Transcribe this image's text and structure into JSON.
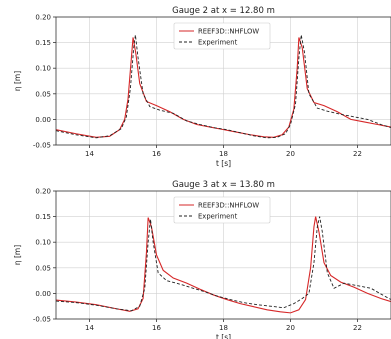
{
  "chart_data": [
    {
      "type": "line",
      "title": "Gauge 2 at x =  12.80 m",
      "xlabel": "t [s]",
      "ylabel": "η [m]",
      "xlim": [
        13,
        23
      ],
      "ylim": [
        -0.05,
        0.2
      ],
      "xticks": [
        "14",
        "16",
        "18",
        "20",
        "22"
      ],
      "yticks": [
        "-0.05",
        "0.00",
        "0.05",
        "0.10",
        "0.15",
        "0.20"
      ],
      "grid": true,
      "legend_position": "upper-center",
      "series": [
        {
          "name": "REEF3D::NHFLOW",
          "color": "#d62728",
          "style": "solid",
          "x": [
            13.0,
            13.6,
            14.2,
            14.6,
            14.9,
            15.05,
            15.15,
            15.25,
            15.3,
            15.38,
            15.5,
            15.7,
            16.0,
            16.4,
            16.8,
            17.2,
            17.6,
            18.0,
            18.4,
            18.8,
            19.2,
            19.5,
            19.75,
            19.95,
            20.1,
            20.2,
            20.25,
            20.35,
            20.5,
            20.7,
            21.0,
            21.4,
            21.8,
            22.2,
            22.6,
            23.0
          ],
          "y": [
            -0.02,
            -0.028,
            -0.035,
            -0.033,
            -0.02,
            0.0,
            0.04,
            0.12,
            0.16,
            0.13,
            0.07,
            0.035,
            0.027,
            0.015,
            0.0,
            -0.01,
            -0.015,
            -0.02,
            -0.025,
            -0.03,
            -0.034,
            -0.035,
            -0.03,
            -0.015,
            0.02,
            0.1,
            0.16,
            0.14,
            0.06,
            0.033,
            0.027,
            0.015,
            0.0,
            -0.005,
            -0.01,
            -0.015
          ]
        },
        {
          "name": "Experiment",
          "color": "#222222",
          "style": "dashed",
          "x": [
            13.0,
            13.6,
            14.2,
            14.6,
            14.95,
            15.1,
            15.22,
            15.32,
            15.37,
            15.45,
            15.6,
            15.8,
            16.1,
            16.5,
            16.9,
            17.3,
            17.7,
            18.1,
            18.5,
            18.9,
            19.3,
            19.6,
            19.85,
            20.0,
            20.15,
            20.25,
            20.32,
            20.42,
            20.55,
            20.8,
            21.1,
            21.5,
            21.9,
            22.3,
            22.7,
            23.0
          ],
          "y": [
            -0.022,
            -0.03,
            -0.036,
            -0.032,
            -0.018,
            0.005,
            0.06,
            0.14,
            0.165,
            0.12,
            0.05,
            0.025,
            0.018,
            0.012,
            -0.003,
            -0.01,
            -0.016,
            -0.02,
            -0.026,
            -0.032,
            -0.036,
            -0.035,
            -0.028,
            -0.01,
            0.03,
            0.12,
            0.165,
            0.13,
            0.05,
            0.022,
            0.016,
            0.01,
            0.005,
            0.0,
            -0.01,
            -0.016
          ]
        }
      ]
    },
    {
      "type": "line",
      "title": "Gauge 3 at x =  13.80 m",
      "xlabel": "t [s]",
      "ylabel": "η [m]",
      "xlim": [
        13,
        23
      ],
      "ylim": [
        -0.05,
        0.2
      ],
      "xticks": [
        "14",
        "16",
        "18",
        "20",
        "22"
      ],
      "yticks": [
        "-0.05",
        "0.00",
        "0.05",
        "0.10",
        "0.15",
        "0.20"
      ],
      "grid": true,
      "legend_position": "upper-center",
      "series": [
        {
          "name": "REEF3D::NHFLOW",
          "color": "#d62728",
          "style": "solid",
          "x": [
            13.0,
            13.6,
            14.2,
            14.8,
            15.2,
            15.45,
            15.6,
            15.7,
            15.75,
            15.85,
            16.0,
            16.2,
            16.5,
            16.9,
            17.3,
            17.7,
            18.1,
            18.5,
            18.9,
            19.3,
            19.7,
            20.0,
            20.25,
            20.45,
            20.6,
            20.7,
            20.75,
            20.85,
            21.0,
            21.2,
            21.5,
            21.9,
            22.3,
            22.7,
            23.0
          ],
          "y": [
            -0.013,
            -0.017,
            -0.022,
            -0.03,
            -0.035,
            -0.03,
            -0.01,
            0.08,
            0.148,
            0.13,
            0.075,
            0.045,
            0.03,
            0.02,
            0.008,
            -0.003,
            -0.012,
            -0.02,
            -0.026,
            -0.032,
            -0.036,
            -0.038,
            -0.032,
            -0.012,
            0.05,
            0.13,
            0.15,
            0.12,
            0.06,
            0.035,
            0.022,
            0.012,
            0.0,
            -0.01,
            -0.016
          ]
        },
        {
          "name": "Experiment",
          "color": "#222222",
          "style": "dashed",
          "x": [
            13.0,
            13.6,
            14.2,
            14.8,
            15.25,
            15.5,
            15.65,
            15.75,
            15.82,
            15.9,
            16.05,
            16.3,
            16.6,
            17.0,
            17.4,
            17.8,
            18.2,
            18.6,
            19.0,
            19.4,
            19.8,
            20.1,
            20.35,
            20.55,
            20.7,
            20.8,
            20.87,
            20.95,
            21.1,
            21.3,
            21.6,
            22.0,
            22.4,
            22.8,
            23.0
          ],
          "y": [
            -0.015,
            -0.018,
            -0.023,
            -0.03,
            -0.034,
            -0.025,
            0.01,
            0.1,
            0.145,
            0.1,
            0.04,
            0.025,
            0.02,
            0.012,
            0.004,
            -0.005,
            -0.012,
            -0.018,
            -0.022,
            -0.025,
            -0.028,
            -0.02,
            -0.01,
            0.0,
            0.06,
            0.13,
            0.15,
            0.12,
            0.04,
            0.01,
            0.02,
            0.015,
            0.01,
            -0.005,
            -0.012
          ]
        }
      ]
    }
  ]
}
